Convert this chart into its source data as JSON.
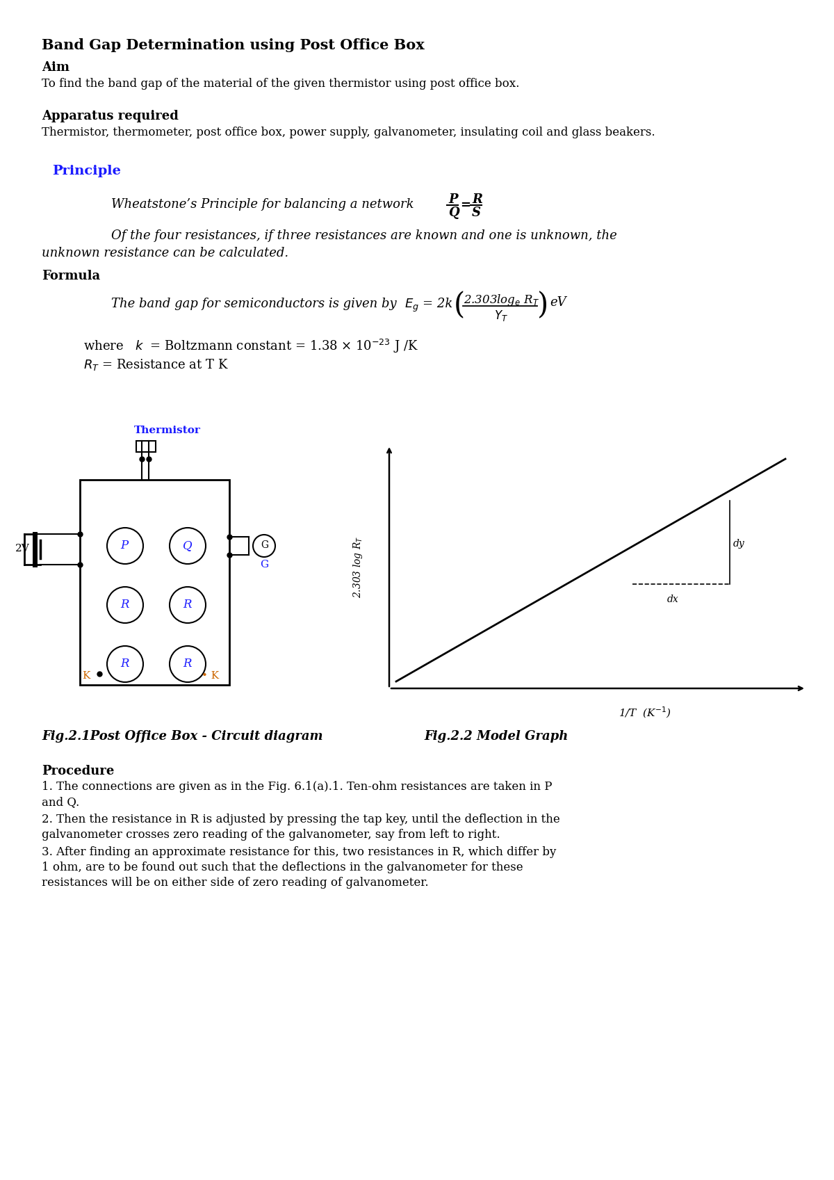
{
  "title": "Band Gap Determination using Post Office Box",
  "aim_heading": "Aim",
  "aim_text": "To find the band gap of the material of the given thermistor using post office box.",
  "apparatus_heading": "Apparatus required",
  "apparatus_text": "Thermistor, thermometer, post office box, power supply, galvanometer, insulating coil and glass beakers.",
  "principle_heading": "Principle",
  "wheatstone_text": "Wheatstone’s Principle for balancing a network",
  "principle_text2a": "Of the four resistances, if three resistances are known and one is unknown, the",
  "principle_text2b": "unknown resistance can be calculated.",
  "formula_heading": "Formula",
  "formula_text": "The band gap for semiconductors is given by",
  "where_text1": "where   k  = Boltzmann constant = 1.38 × 10",
  "where_text2": "Rᵀ = Resistance at T K",
  "fig1_caption": "Fig.2.1Post Office Box - Circuit diagram",
  "fig2_caption": "Fig.2.2 Model Graph",
  "procedure_heading": "Procedure",
  "procedure_text1": "1. The connections are given as in the Fig. 6.1(a).1. Ten-ohm resistances are taken in P",
  "procedure_text1b": "and Q.",
  "procedure_text2": "2. Then the resistance in R is adjusted by pressing the tap key, until the deflection in the",
  "procedure_text2b": "galvanometer crosses zero reading of the galvanometer, say from left to right.",
  "procedure_text3": "3. After finding an approximate resistance for this, two resistances in R, which differ by",
  "procedure_text3b": "1 ohm, are to be found out such that the deflections in the galvanometer for these",
  "procedure_text3c": "resistances will be on either side of zero reading of galvanometer.",
  "bg_color": "#ffffff",
  "text_color": "#000000",
  "principle_color": "#1a1aff",
  "thermistor_label_color": "#1a1aff",
  "k_label_color": "#cc6600",
  "g_label_color": "#1a1aff"
}
